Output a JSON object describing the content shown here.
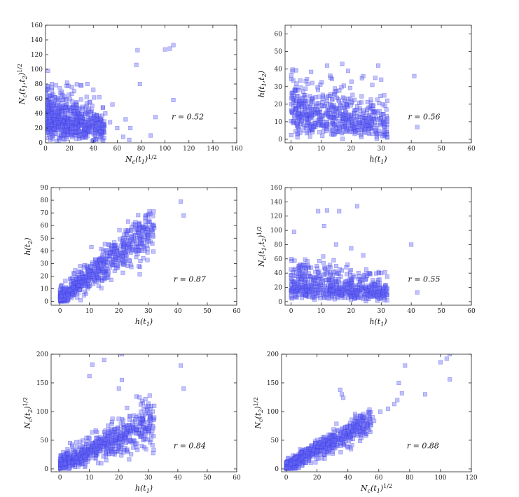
{
  "chart_data": [
    {
      "type": "scatter",
      "xlabel": "N_c(t_1)^{1/2}",
      "ylabel": "N_c(t_1,t_2)^{1/2}",
      "xlim": [
        0,
        160
      ],
      "ylim": [
        0,
        160
      ],
      "xticks": [
        "0",
        "20",
        "40",
        "60",
        "80",
        "100",
        "120",
        "140",
        "160"
      ],
      "yticks": [
        "0",
        "20",
        "40",
        "60",
        "80",
        "100",
        "120",
        "140",
        "160"
      ],
      "annotation": "r = 0.52",
      "points": [
        [
          2,
          98
        ],
        [
          77,
          126
        ],
        [
          76,
          106
        ],
        [
          79,
          80
        ],
        [
          100,
          127
        ],
        [
          104,
          128
        ],
        [
          107,
          133
        ],
        [
          107,
          58
        ],
        [
          92,
          35
        ],
        [
          67,
          32
        ],
        [
          71,
          20
        ],
        [
          60,
          20
        ],
        [
          54,
          28
        ],
        [
          48,
          48
        ],
        [
          45,
          62
        ],
        [
          40,
          72
        ],
        [
          35,
          80
        ],
        [
          30,
          78
        ],
        [
          22,
          76
        ],
        [
          18,
          82
        ],
        [
          12,
          74
        ],
        [
          8,
          62
        ],
        [
          5,
          55
        ],
        [
          65,
          8
        ],
        [
          70,
          4
        ],
        [
          88,
          10
        ],
        [
          56,
          52
        ],
        [
          50,
          40
        ]
      ],
      "clouds": [
        {
          "type": "blob",
          "count": 650,
          "xr": [
            0,
            50
          ],
          "ymax": 80,
          "mean": 0.38,
          "spread": 0.55,
          "skew": 0.9
        }
      ]
    },
    {
      "type": "scatter",
      "xlabel": "h(t_1)",
      "ylabel": "h(t_1,t_2)",
      "xlim": [
        -2,
        60
      ],
      "ylim": [
        -2,
        65
      ],
      "xticks": [
        "0",
        "10",
        "20",
        "30",
        "40",
        "50",
        "60"
      ],
      "yticks": [
        "0",
        "10",
        "20",
        "30",
        "40",
        "50",
        "60"
      ],
      "annotation": "r = 0.56",
      "points": [
        [
          41,
          36
        ],
        [
          42,
          7
        ],
        [
          28,
          35
        ],
        [
          30,
          34
        ],
        [
          29,
          42
        ],
        [
          27,
          31
        ],
        [
          31,
          25
        ],
        [
          32,
          22
        ],
        [
          30,
          14
        ],
        [
          31,
          9
        ],
        [
          32,
          1
        ],
        [
          24,
          36
        ],
        [
          17,
          43
        ],
        [
          19,
          39
        ],
        [
          12,
          42
        ]
      ],
      "clouds": [
        {
          "type": "blob",
          "count": 600,
          "xr": [
            0,
            32
          ],
          "ymax": 40,
          "mean": 0.32,
          "spread": 0.55,
          "skew": 0.8
        }
      ]
    },
    {
      "type": "scatter",
      "xlabel": "h(t_1)",
      "ylabel": "h(t_2)",
      "xlim": [
        -3,
        60
      ],
      "ylim": [
        -3,
        90
      ],
      "xticks": [
        "0",
        "10",
        "20",
        "30",
        "40",
        "50",
        "60"
      ],
      "yticks": [
        "0",
        "10",
        "20",
        "30",
        "40",
        "50",
        "60",
        "70",
        "80",
        "90"
      ],
      "annotation": "r = 0.87",
      "points": [
        [
          41,
          79
        ],
        [
          42,
          68
        ],
        [
          29,
          66
        ],
        [
          32,
          58
        ],
        [
          31,
          56
        ],
        [
          30,
          48
        ],
        [
          27,
          52
        ],
        [
          28,
          45
        ]
      ],
      "clouds": [
        {
          "type": "band",
          "count": 650,
          "xr": [
            0,
            32
          ],
          "slope": 1.75,
          "intercept": 3,
          "noise": 10
        }
      ]
    },
    {
      "type": "scatter",
      "xlabel": "h(t_1)",
      "ylabel": "N_c(t_1,t_2)^{1/2}",
      "xlim": [
        -2,
        60
      ],
      "ylim": [
        -5,
        160
      ],
      "xticks": [
        "0",
        "10",
        "20",
        "30",
        "40",
        "50",
        "60"
      ],
      "yticks": [
        "0",
        "20",
        "40",
        "60",
        "80",
        "100",
        "120",
        "140",
        "160"
      ],
      "annotation": "r = 0.55",
      "points": [
        [
          1,
          98
        ],
        [
          9,
          127
        ],
        [
          12,
          128
        ],
        [
          16,
          127
        ],
        [
          22,
          134
        ],
        [
          11,
          106
        ],
        [
          40,
          80
        ],
        [
          42,
          13
        ],
        [
          31,
          2
        ],
        [
          32,
          35
        ],
        [
          30,
          40
        ],
        [
          25,
          45
        ],
        [
          20,
          75
        ],
        [
          15,
          80
        ],
        [
          24,
          65
        ]
      ],
      "clouds": [
        {
          "type": "blob",
          "count": 600,
          "xr": [
            0,
            32
          ],
          "ymax": 65,
          "mean": 0.28,
          "spread": 0.55,
          "skew": 0.8
        }
      ]
    },
    {
      "type": "scatter",
      "xlabel": "h(t_1)",
      "ylabel": "N_c(t_2)^{1/2}",
      "xlim": [
        -3,
        60
      ],
      "ylim": [
        -5,
        200
      ],
      "xticks": [
        "0",
        "10",
        "20",
        "30",
        "40",
        "50",
        "60"
      ],
      "yticks": [
        "0",
        "50",
        "100",
        "150",
        "200"
      ],
      "annotation": "r = 0.84",
      "points": [
        [
          21,
          200
        ],
        [
          15,
          190
        ],
        [
          11,
          182
        ],
        [
          21,
          155
        ],
        [
          20,
          140
        ],
        [
          41,
          180
        ],
        [
          42,
          140
        ],
        [
          10,
          162
        ],
        [
          29,
          122
        ],
        [
          30,
          114
        ],
        [
          32,
          110
        ],
        [
          27,
          125
        ],
        [
          31,
          80
        ],
        [
          30,
          70
        ],
        [
          31,
          60
        ]
      ],
      "clouds": [
        {
          "type": "band",
          "count": 650,
          "xr": [
            0,
            32
          ],
          "slope": 2.3,
          "intercept": 8,
          "noise": 22
        }
      ]
    },
    {
      "type": "scatter",
      "xlabel": "N_c(t_1)^{1/2}",
      "ylabel": "N_c(t_2)^{1/2}",
      "xlim": [
        -3,
        120
      ],
      "ylim": [
        -5,
        200
      ],
      "xticks": [
        "0",
        "20",
        "40",
        "60",
        "80",
        "100",
        "120"
      ],
      "yticks": [
        "0",
        "50",
        "100",
        "150",
        "200"
      ],
      "annotation": "r = 0.88",
      "points": [
        [
          106,
          200
        ],
        [
          104,
          192
        ],
        [
          100,
          186
        ],
        [
          106,
          156
        ],
        [
          90,
          130
        ],
        [
          77,
          180
        ],
        [
          73,
          150
        ],
        [
          75,
          132
        ],
        [
          72,
          120
        ],
        [
          70,
          113
        ],
        [
          66,
          105
        ],
        [
          61,
          100
        ],
        [
          56,
          90
        ],
        [
          57,
          84
        ],
        [
          48,
          80
        ],
        [
          50,
          70
        ],
        [
          35,
          138
        ],
        [
          36,
          130
        ],
        [
          37,
          124
        ]
      ],
      "clouds": [
        {
          "type": "band",
          "count": 650,
          "xr": [
            0,
            55
          ],
          "slope": 1.45,
          "intercept": 5,
          "noise": 12
        }
      ]
    }
  ]
}
